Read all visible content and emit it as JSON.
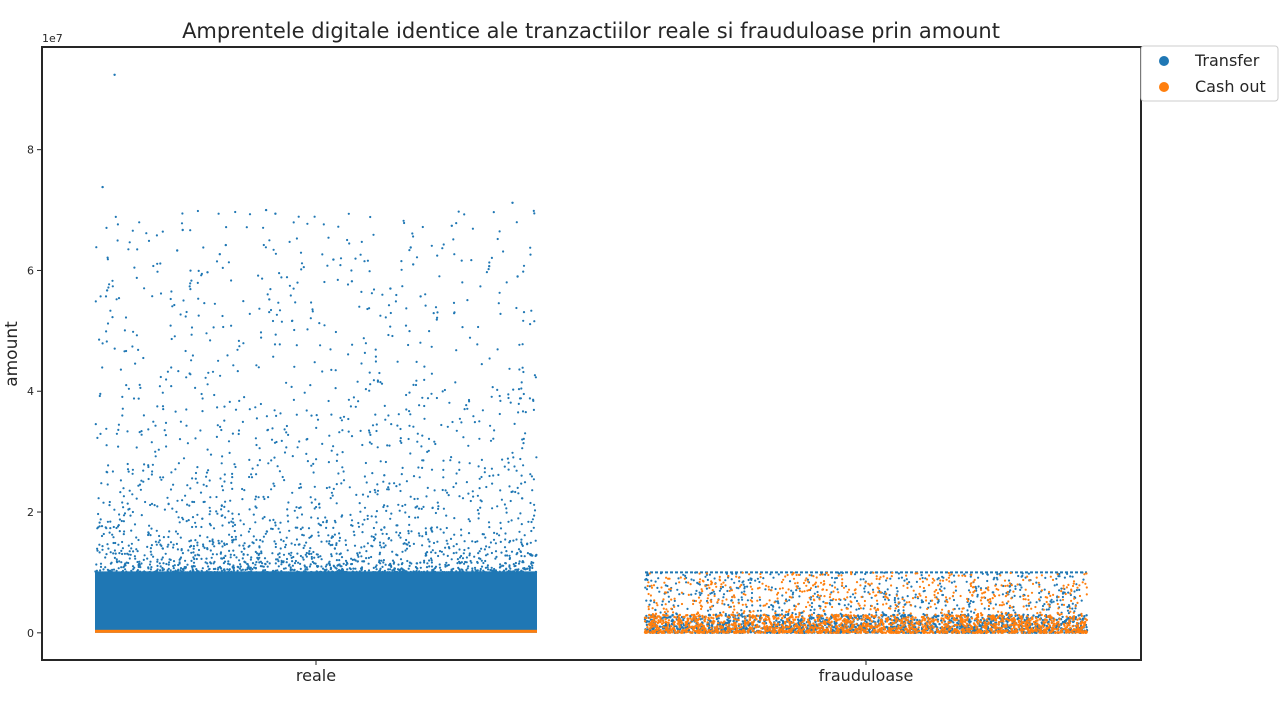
{
  "chart_data": {
    "type": "scatter",
    "subtype": "strip",
    "title": "Amprentele digitale identice ale tranzactiilor reale si frauduloase prin amount",
    "xlabel": "",
    "ylabel": "amount",
    "y_offset_label": "1e7",
    "categories": [
      "reale",
      "frauduloase"
    ],
    "ylim": [
      -4500000,
      97000000
    ],
    "yticks": [
      0,
      20000000,
      40000000,
      60000000,
      80000000
    ],
    "ytick_labels": [
      "0",
      "2",
      "4",
      "6",
      "8"
    ],
    "grid": false,
    "legend": {
      "placement": "outside-top-right",
      "entries": [
        {
          "name": "Transfer",
          "color": "#1f77b4"
        },
        {
          "name": "Cash out",
          "color": "#ff7f0e"
        }
      ]
    },
    "series": [
      {
        "name": "Transfer",
        "color": "#1f77b4",
        "distribution": [
          {
            "category": "reale",
            "dense_range": [
              0,
              10000000
            ],
            "cap_line": 10000000,
            "sparse_range": [
              10000000,
              70000000
            ],
            "max": 92400000
          },
          {
            "category": "frauduloase",
            "dense_range": [
              0,
              3000000
            ],
            "cap_line": 10000000,
            "sparse_range": [
              3000000,
              10000000
            ]
          }
        ],
        "outliers": [
          {
            "category": "reale",
            "y": 92400000
          },
          {
            "category": "reale",
            "y": 73800000
          },
          {
            "category": "reale",
            "y": 71200000
          },
          {
            "category": "reale",
            "y": 70000000
          },
          {
            "category": "reale",
            "y": 69400000
          },
          {
            "category": "reale",
            "y": 67400000
          },
          {
            "category": "reale",
            "y": 66700000
          },
          {
            "category": "reale",
            "y": 64200000
          },
          {
            "category": "reale",
            "y": 63800000
          },
          {
            "category": "reale",
            "y": 63300000
          },
          {
            "category": "reale",
            "y": 62700000
          },
          {
            "category": "reale",
            "y": 61800000
          },
          {
            "category": "reale",
            "y": 61000000
          },
          {
            "category": "reale",
            "y": 60700000
          },
          {
            "category": "reale",
            "y": 59700000
          },
          {
            "category": "reale",
            "y": 59000000
          },
          {
            "category": "reale",
            "y": 58200000
          },
          {
            "category": "reale",
            "y": 57000000
          },
          {
            "category": "reale",
            "y": 56700000
          },
          {
            "category": "reale",
            "y": 55700000
          },
          {
            "category": "reale",
            "y": 55200000
          }
        ]
      },
      {
        "name": "Cash out",
        "color": "#ff7f0e",
        "distribution": [
          {
            "category": "reale",
            "dense_range": [
              0,
              500000
            ]
          },
          {
            "category": "frauduloase",
            "dense_range": [
              0,
              3000000
            ],
            "sparse_range": [
              3000000,
              10000000
            ]
          }
        ]
      }
    ]
  }
}
